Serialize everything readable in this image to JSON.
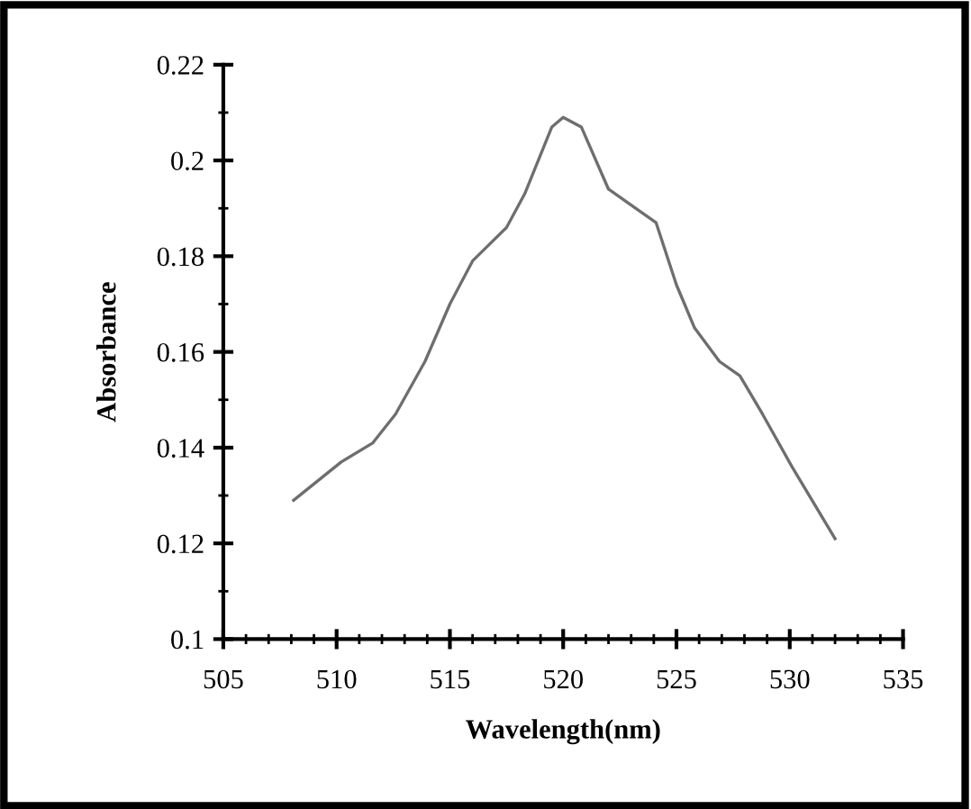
{
  "chart_data": {
    "type": "line",
    "xlabel": "Wavelength(nm)",
    "ylabel": "Absorbance",
    "x": [
      508.1,
      510.2,
      511.6,
      512.6,
      513.9,
      515.0,
      516.0,
      517.5,
      518.3,
      519.5,
      520.0,
      520.8,
      522.0,
      522.9,
      524.1,
      525.0,
      525.8,
      526.9,
      527.8,
      528.8,
      530.1,
      532.0
    ],
    "series": [
      {
        "color": "#6e6e6e",
        "values": [
          0.129,
          0.137,
          0.141,
          0.147,
          0.158,
          0.17,
          0.179,
          0.186,
          0.193,
          0.207,
          0.209,
          0.207,
          0.194,
          0.191,
          0.187,
          0.174,
          0.165,
          0.158,
          0.155,
          0.147,
          0.136,
          0.121
        ]
      }
    ],
    "xlim": [
      505,
      535
    ],
    "xticks": [
      505,
      510,
      515,
      520,
      525,
      530,
      535
    ],
    "ylim": [
      0.1,
      0.22
    ],
    "yticks": [
      0.1,
      0.12,
      0.14,
      0.16,
      0.18,
      0.2,
      0.22
    ],
    "grid": false,
    "legend": false,
    "marker": "none",
    "line_style": "solid"
  }
}
